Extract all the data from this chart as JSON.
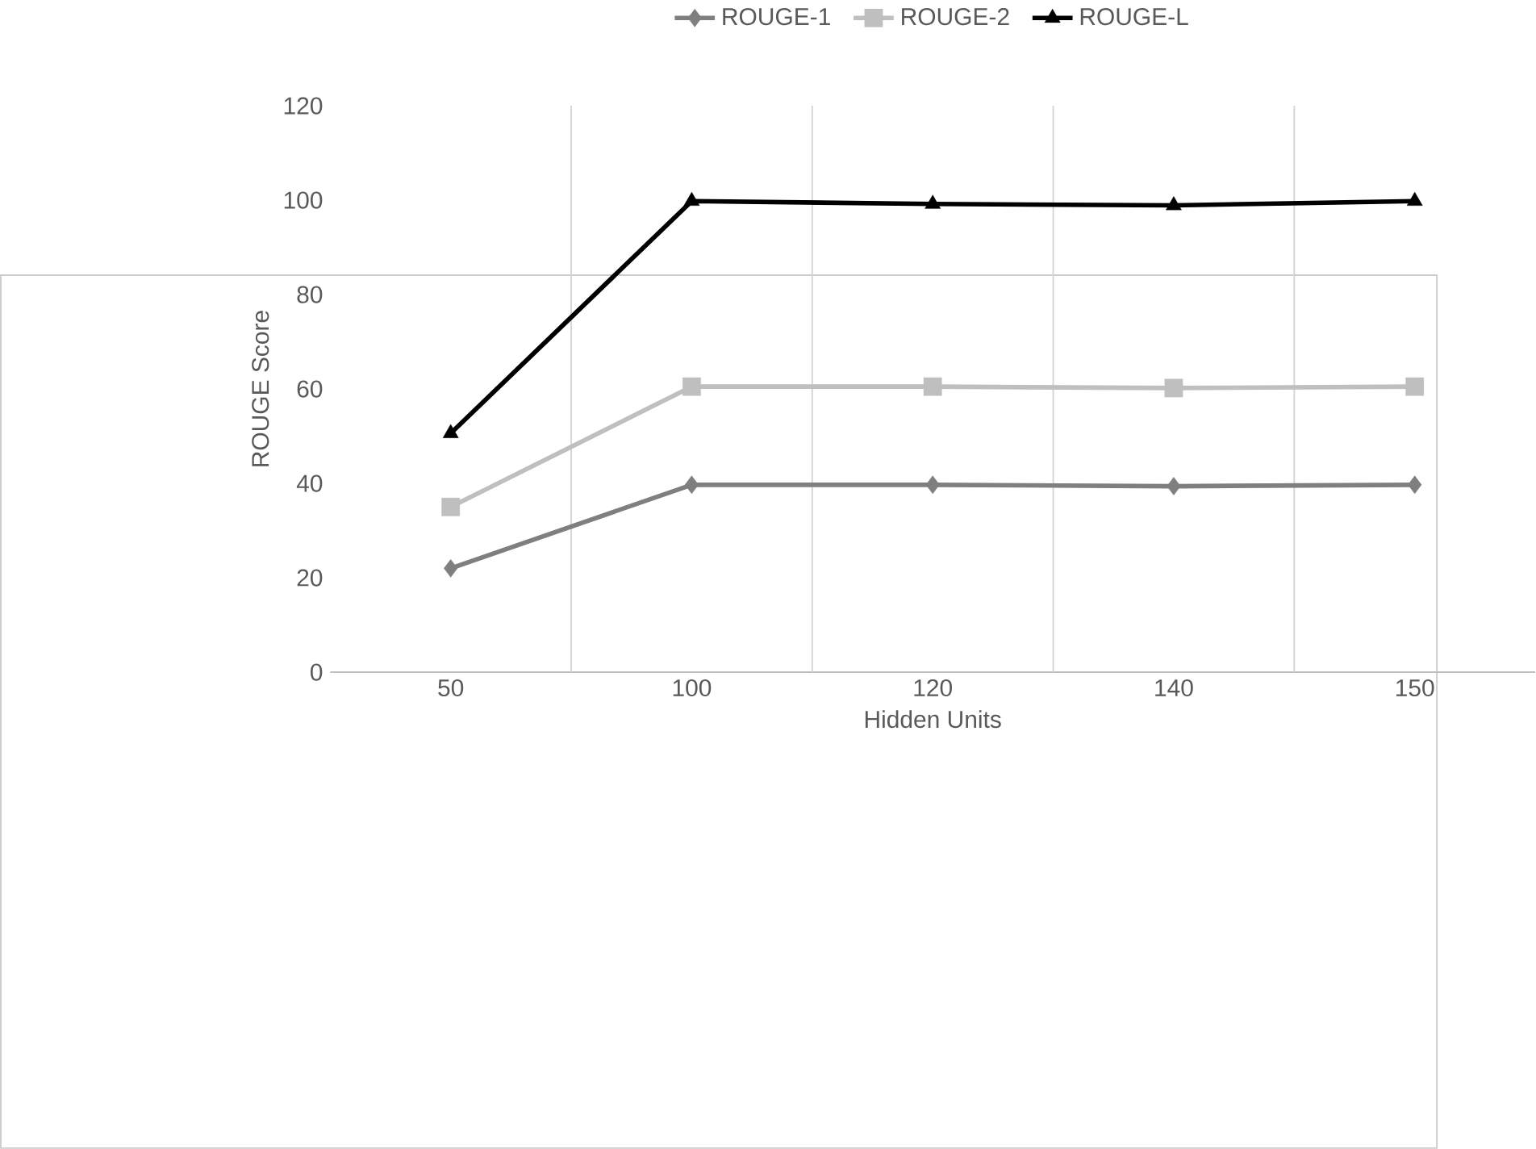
{
  "chart_data": {
    "type": "line",
    "xlabel": "Hidden Units",
    "ylabel": "ROUGE Score",
    "categories": [
      "50",
      "100",
      "120",
      "140",
      "150"
    ],
    "series": [
      {
        "name": "ROUGE-1",
        "color": "#7f7f7f",
        "marker": "diamond",
        "values": [
          22,
          39.7,
          39.7,
          39.4,
          39.7
        ]
      },
      {
        "name": "ROUGE-2",
        "color": "#bfbfbf",
        "marker": "square",
        "values": [
          35,
          60.5,
          60.5,
          60.2,
          60.5
        ]
      },
      {
        "name": "ROUGE-L",
        "color": "#000000",
        "marker": "triangle",
        "values": [
          50.6,
          99.8,
          99.2,
          98.9,
          99.8
        ]
      }
    ],
    "ylim": [
      0,
      120
    ],
    "yticks": [
      0,
      20,
      40,
      60,
      80,
      100,
      120
    ],
    "grid": "x",
    "legend": "top"
  }
}
